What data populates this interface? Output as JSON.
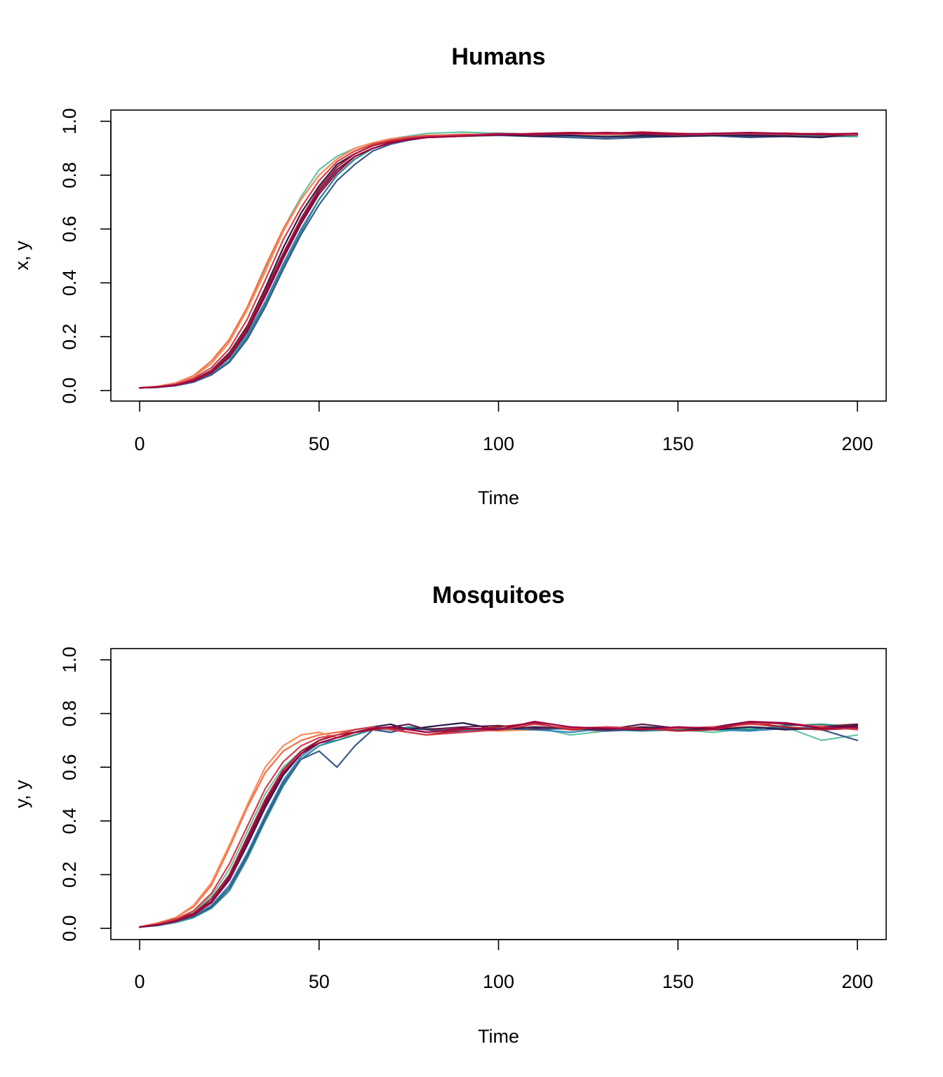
{
  "chart_data": [
    {
      "type": "line",
      "title": "Humans",
      "xlabel": "Time",
      "ylabel": "x, y",
      "xlim": [
        0,
        200
      ],
      "ylim": [
        0,
        1
      ],
      "xticks": [
        "0",
        "50",
        "100",
        "150",
        "200"
      ],
      "yticks": [
        "0.0",
        "0.2",
        "0.4",
        "0.6",
        "0.8",
        "1.0"
      ],
      "grid": false,
      "legend": "none",
      "x": [
        0,
        5,
        10,
        15,
        20,
        25,
        30,
        35,
        40,
        45,
        50,
        55,
        60,
        65,
        70,
        75,
        80,
        90,
        100,
        110,
        120,
        130,
        140,
        150,
        160,
        170,
        180,
        190,
        200
      ],
      "series": [
        {
          "color": "#66c2a5",
          "values": [
            0.01,
            0.015,
            0.025,
            0.05,
            0.1,
            0.18,
            0.3,
            0.45,
            0.6,
            0.72,
            0.82,
            0.87,
            0.9,
            0.92,
            0.935,
            0.945,
            0.955,
            0.96,
            0.955,
            0.952,
            0.95,
            0.948,
            0.95,
            0.946,
            0.95,
            0.948,
            0.95,
            0.945,
            0.943
          ]
        },
        {
          "color": "#f46d43",
          "values": [
            0.01,
            0.016,
            0.028,
            0.055,
            0.11,
            0.19,
            0.31,
            0.46,
            0.6,
            0.71,
            0.8,
            0.86,
            0.9,
            0.92,
            0.935,
            0.942,
            0.948,
            0.95,
            0.952,
            0.95,
            0.953,
            0.95,
            0.952,
            0.95,
            0.952,
            0.95,
            0.956,
            0.952,
            0.95
          ]
        },
        {
          "color": "#fc8d59",
          "values": [
            0.01,
            0.016,
            0.027,
            0.052,
            0.1,
            0.18,
            0.3,
            0.44,
            0.59,
            0.71,
            0.8,
            0.86,
            0.9,
            0.92,
            0.935,
            0.94,
            0.946,
            0.952,
            0.95,
            0.948,
            0.95,
            0.952,
            0.95,
            0.948,
            0.95,
            0.952,
            0.95,
            0.955,
            0.948
          ]
        },
        {
          "color": "#3288bd",
          "values": [
            0.01,
            0.012,
            0.02,
            0.035,
            0.065,
            0.12,
            0.21,
            0.33,
            0.47,
            0.6,
            0.71,
            0.8,
            0.86,
            0.9,
            0.92,
            0.935,
            0.942,
            0.948,
            0.95,
            0.948,
            0.945,
            0.942,
            0.948,
            0.946,
            0.95,
            0.948,
            0.945,
            0.946,
            0.95
          ]
        },
        {
          "color": "#2b8c8c",
          "values": [
            0.01,
            0.012,
            0.019,
            0.033,
            0.06,
            0.11,
            0.2,
            0.32,
            0.46,
            0.59,
            0.71,
            0.8,
            0.86,
            0.9,
            0.92,
            0.935,
            0.94,
            0.948,
            0.95,
            0.946,
            0.948,
            0.942,
            0.945,
            0.948,
            0.95,
            0.945,
            0.948,
            0.946,
            0.952
          ]
        },
        {
          "color": "#3b5a8a",
          "values": [
            0.01,
            0.012,
            0.018,
            0.031,
            0.058,
            0.105,
            0.19,
            0.31,
            0.45,
            0.58,
            0.69,
            0.78,
            0.84,
            0.89,
            0.915,
            0.93,
            0.94,
            0.945,
            0.948,
            0.944,
            0.94,
            0.935,
            0.94,
            0.944,
            0.946,
            0.94,
            0.944,
            0.942,
            0.948
          ]
        },
        {
          "color": "#2a1a4a",
          "values": [
            0.01,
            0.013,
            0.022,
            0.04,
            0.075,
            0.14,
            0.24,
            0.38,
            0.53,
            0.66,
            0.76,
            0.84,
            0.88,
            0.91,
            0.925,
            0.935,
            0.942,
            0.948,
            0.95,
            0.945,
            0.948,
            0.942,
            0.946,
            0.944,
            0.948,
            0.946,
            0.944,
            0.94,
            0.955
          ]
        },
        {
          "color": "#5e1a4a",
          "values": [
            0.01,
            0.013,
            0.021,
            0.038,
            0.07,
            0.13,
            0.23,
            0.36,
            0.5,
            0.63,
            0.74,
            0.82,
            0.87,
            0.9,
            0.92,
            0.935,
            0.94,
            0.948,
            0.955,
            0.952,
            0.958,
            0.955,
            0.952,
            0.95,
            0.955,
            0.952,
            0.95,
            0.952,
            0.955
          ]
        },
        {
          "color": "#b2182b",
          "values": [
            0.01,
            0.013,
            0.022,
            0.04,
            0.074,
            0.135,
            0.235,
            0.37,
            0.51,
            0.64,
            0.75,
            0.83,
            0.88,
            0.91,
            0.925,
            0.935,
            0.94,
            0.945,
            0.95,
            0.955,
            0.958,
            0.955,
            0.96,
            0.955,
            0.952,
            0.955,
            0.952,
            0.95,
            0.95
          ]
        },
        {
          "color": "#d53e4f",
          "values": [
            0.01,
            0.014,
            0.024,
            0.045,
            0.085,
            0.155,
            0.265,
            0.41,
            0.56,
            0.68,
            0.78,
            0.85,
            0.89,
            0.915,
            0.93,
            0.94,
            0.945,
            0.95,
            0.952,
            0.95,
            0.955,
            0.952,
            0.955,
            0.95,
            0.952,
            0.955,
            0.952,
            0.955,
            0.95
          ]
        },
        {
          "color": "#9e0142",
          "values": [
            0.01,
            0.013,
            0.02,
            0.036,
            0.067,
            0.125,
            0.22,
            0.35,
            0.49,
            0.62,
            0.73,
            0.81,
            0.87,
            0.9,
            0.92,
            0.932,
            0.94,
            0.945,
            0.95,
            0.952,
            0.955,
            0.958,
            0.955,
            0.952,
            0.955,
            0.958,
            0.955,
            0.952,
            0.955
          ]
        }
      ]
    },
    {
      "type": "line",
      "title": "Mosquitoes",
      "xlabel": "Time",
      "ylabel": "y, y",
      "xlim": [
        0,
        200
      ],
      "ylim": [
        0,
        1
      ],
      "xticks": [
        "0",
        "50",
        "100",
        "150",
        "200"
      ],
      "yticks": [
        "0.0",
        "0.2",
        "0.4",
        "0.6",
        "0.8",
        "1.0"
      ],
      "grid": false,
      "legend": "none",
      "x": [
        0,
        5,
        10,
        15,
        20,
        25,
        30,
        35,
        40,
        45,
        50,
        55,
        60,
        65,
        70,
        75,
        80,
        90,
        100,
        110,
        120,
        130,
        140,
        150,
        160,
        170,
        180,
        190,
        200
      ],
      "series": [
        {
          "color": "#66c2a5",
          "values": [
            0.005,
            0.015,
            0.03,
            0.06,
            0.12,
            0.22,
            0.36,
            0.5,
            0.6,
            0.66,
            0.7,
            0.72,
            0.74,
            0.75,
            0.74,
            0.745,
            0.73,
            0.74,
            0.745,
            0.75,
            0.72,
            0.735,
            0.745,
            0.74,
            0.73,
            0.745,
            0.75,
            0.7,
            0.72
          ]
        },
        {
          "color": "#f46d43",
          "values": [
            0.005,
            0.02,
            0.04,
            0.08,
            0.16,
            0.3,
            0.45,
            0.58,
            0.66,
            0.7,
            0.72,
            0.73,
            0.74,
            0.75,
            0.74,
            0.73,
            0.72,
            0.745,
            0.74,
            0.75,
            0.74,
            0.735,
            0.75,
            0.74,
            0.745,
            0.76,
            0.75,
            0.74,
            0.745
          ]
        },
        {
          "color": "#fc8d59",
          "values": [
            0.005,
            0.018,
            0.04,
            0.085,
            0.17,
            0.31,
            0.46,
            0.6,
            0.68,
            0.72,
            0.73,
            0.71,
            0.72,
            0.74,
            0.75,
            0.74,
            0.745,
            0.74,
            0.735,
            0.74,
            0.75,
            0.74,
            0.745,
            0.74,
            0.745,
            0.75,
            0.74,
            0.755,
            0.76
          ]
        },
        {
          "color": "#3288bd",
          "values": [
            0.005,
            0.012,
            0.025,
            0.045,
            0.085,
            0.16,
            0.28,
            0.42,
            0.55,
            0.64,
            0.69,
            0.7,
            0.72,
            0.74,
            0.73,
            0.75,
            0.74,
            0.735,
            0.745,
            0.74,
            0.73,
            0.745,
            0.74,
            0.75,
            0.74,
            0.735,
            0.745,
            0.75,
            0.745
          ]
        },
        {
          "color": "#2b8c8c",
          "values": [
            0.005,
            0.01,
            0.022,
            0.04,
            0.075,
            0.14,
            0.26,
            0.4,
            0.53,
            0.63,
            0.68,
            0.7,
            0.72,
            0.745,
            0.74,
            0.75,
            0.745,
            0.73,
            0.74,
            0.75,
            0.745,
            0.74,
            0.735,
            0.74,
            0.745,
            0.74,
            0.755,
            0.76,
            0.75
          ]
        },
        {
          "color": "#3b5a8a",
          "values": [
            0.005,
            0.012,
            0.025,
            0.045,
            0.08,
            0.15,
            0.27,
            0.41,
            0.54,
            0.63,
            0.66,
            0.6,
            0.68,
            0.74,
            0.73,
            0.745,
            0.74,
            0.73,
            0.745,
            0.74,
            0.745,
            0.735,
            0.74,
            0.745,
            0.74,
            0.75,
            0.745,
            0.74,
            0.7
          ]
        },
        {
          "color": "#2a1a4a",
          "values": [
            0.005,
            0.014,
            0.028,
            0.05,
            0.1,
            0.18,
            0.31,
            0.45,
            0.57,
            0.65,
            0.7,
            0.72,
            0.74,
            0.75,
            0.76,
            0.74,
            0.75,
            0.765,
            0.74,
            0.75,
            0.745,
            0.74,
            0.75,
            0.745,
            0.74,
            0.75,
            0.74,
            0.745,
            0.755
          ]
        },
        {
          "color": "#5e1a4a",
          "values": [
            0.005,
            0.016,
            0.035,
            0.055,
            0.1,
            0.19,
            0.33,
            0.47,
            0.58,
            0.65,
            0.69,
            0.71,
            0.73,
            0.745,
            0.75,
            0.76,
            0.74,
            0.75,
            0.755,
            0.745,
            0.75,
            0.74,
            0.76,
            0.745,
            0.75,
            0.77,
            0.76,
            0.75,
            0.76
          ]
        },
        {
          "color": "#b2182b",
          "values": [
            0.005,
            0.015,
            0.03,
            0.055,
            0.11,
            0.2,
            0.34,
            0.48,
            0.59,
            0.66,
            0.7,
            0.72,
            0.73,
            0.74,
            0.745,
            0.73,
            0.72,
            0.74,
            0.75,
            0.765,
            0.74,
            0.75,
            0.745,
            0.735,
            0.74,
            0.765,
            0.75,
            0.74,
            0.745
          ]
        },
        {
          "color": "#d53e4f",
          "values": [
            0.005,
            0.016,
            0.034,
            0.065,
            0.13,
            0.24,
            0.38,
            0.52,
            0.62,
            0.68,
            0.71,
            0.72,
            0.74,
            0.75,
            0.74,
            0.73,
            0.72,
            0.73,
            0.74,
            0.76,
            0.745,
            0.75,
            0.74,
            0.745,
            0.75,
            0.76,
            0.765,
            0.75,
            0.74
          ]
        },
        {
          "color": "#9e0142",
          "values": [
            0.005,
            0.013,
            0.027,
            0.05,
            0.095,
            0.18,
            0.32,
            0.46,
            0.58,
            0.65,
            0.69,
            0.71,
            0.73,
            0.745,
            0.75,
            0.74,
            0.73,
            0.745,
            0.74,
            0.77,
            0.75,
            0.745,
            0.74,
            0.75,
            0.745,
            0.77,
            0.765,
            0.745,
            0.75
          ]
        }
      ]
    }
  ]
}
